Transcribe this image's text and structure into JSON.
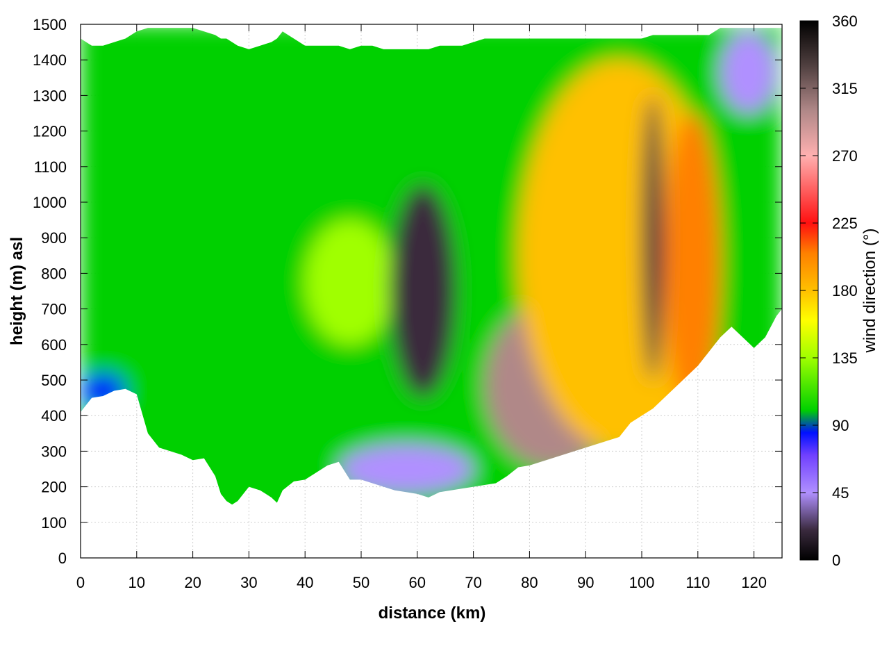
{
  "chart_data": {
    "type": "heatmap",
    "title": "",
    "xlabel": "distance (km)",
    "ylabel": "height (m) asl",
    "xlim": [
      0,
      125
    ],
    "ylim": [
      0,
      1500
    ],
    "xticks": [
      "0",
      "10",
      "20",
      "30",
      "40",
      "50",
      "60",
      "70",
      "80",
      "90",
      "100",
      "110",
      "120"
    ],
    "yticks": [
      "0",
      "100",
      "200",
      "300",
      "400",
      "500",
      "600",
      "700",
      "800",
      "900",
      "1000",
      "1100",
      "1200",
      "1300",
      "1400",
      "1500"
    ],
    "grid": true,
    "colorbar": {
      "label": "wind direction (°)",
      "range": [
        0,
        360
      ],
      "ticks": [
        "0",
        "45",
        "90",
        "135",
        "180",
        "225",
        "270",
        "315",
        "360"
      ],
      "stops": [
        {
          "v": 0,
          "color": "#000000"
        },
        {
          "v": 20,
          "color": "#3a2a3e"
        },
        {
          "v": 45,
          "color": "#b090ff"
        },
        {
          "v": 70,
          "color": "#7040ff"
        },
        {
          "v": 85,
          "color": "#0010ff"
        },
        {
          "v": 100,
          "color": "#00d000"
        },
        {
          "v": 135,
          "color": "#a0ff00"
        },
        {
          "v": 160,
          "color": "#ffff00"
        },
        {
          "v": 180,
          "color": "#ffc000"
        },
        {
          "v": 205,
          "color": "#ff8000"
        },
        {
          "v": 225,
          "color": "#ff1010"
        },
        {
          "v": 270,
          "color": "#ffb0b0"
        },
        {
          "v": 300,
          "color": "#b08888"
        },
        {
          "v": 330,
          "color": "#504040"
        },
        {
          "v": 360,
          "color": "#000000"
        }
      ]
    },
    "terrain_km": [
      0,
      2,
      4,
      6,
      8,
      10,
      12,
      14,
      16,
      18,
      20,
      22,
      24,
      25,
      26,
      27,
      28,
      30,
      32,
      34,
      35,
      36,
      38,
      40,
      42,
      44,
      46,
      48,
      50,
      52,
      54,
      56,
      58,
      60,
      62,
      64,
      66,
      68,
      70,
      72,
      74,
      76,
      78,
      80,
      82,
      84,
      86,
      88,
      90,
      92,
      94,
      96,
      98,
      100,
      102,
      104,
      106,
      108,
      110,
      112,
      114,
      116,
      118,
      120,
      122,
      124,
      125
    ],
    "terrain_m": [
      410,
      450,
      455,
      470,
      475,
      460,
      350,
      310,
      300,
      290,
      275,
      280,
      230,
      180,
      160,
      150,
      160,
      200,
      190,
      170,
      155,
      190,
      215,
      220,
      240,
      260,
      270,
      220,
      220,
      210,
      200,
      190,
      185,
      180,
      170,
      185,
      190,
      195,
      200,
      205,
      210,
      230,
      255,
      260,
      270,
      280,
      290,
      300,
      310,
      320,
      330,
      340,
      380,
      400,
      420,
      450,
      480,
      510,
      540,
      580,
      620,
      650,
      620,
      590,
      620,
      680,
      700
    ],
    "top_m": [
      1460,
      1440,
      1440,
      1450,
      1460,
      1480,
      1490,
      1490,
      1490,
      1490,
      1490,
      1480,
      1470,
      1460,
      1460,
      1450,
      1440,
      1430,
      1440,
      1450,
      1460,
      1480,
      1460,
      1440,
      1440,
      1440,
      1440,
      1430,
      1440,
      1440,
      1430,
      1430,
      1430,
      1430,
      1430,
      1440,
      1440,
      1440,
      1450,
      1460,
      1460,
      1460,
      1460,
      1460,
      1460,
      1460,
      1460,
      1460,
      1460,
      1460,
      1460,
      1460,
      1460,
      1460,
      1470,
      1470,
      1470,
      1470,
      1470,
      1470,
      1490,
      1490,
      1490,
      1490,
      1490,
      1490,
      1490
    ],
    "regions": [
      {
        "feature": "base",
        "value": 125
      },
      {
        "feature": "low-level easterly band",
        "x": [
          0,
          8
        ],
        "y": [
          420,
          520
        ],
        "value": 95
      },
      {
        "feature": "yellow core",
        "x": [
          40,
          56
        ],
        "y": [
          600,
          950
        ],
        "value": 160
      },
      {
        "feature": "western valley flow",
        "x": [
          46,
          70
        ],
        "y": [
          180,
          320
        ],
        "value": 55
      },
      {
        "feature": "north-easterly tongue",
        "x": [
          55,
          67
        ],
        "y": [
          450,
          1050
        ],
        "value": 30
      },
      {
        "feature": "westerly pocket",
        "x": [
          72,
          96
        ],
        "y": [
          250,
          720
        ],
        "value": 320
      },
      {
        "feature": "southerly region",
        "x": [
          78,
          114
        ],
        "y": [
          300,
          1400
        ],
        "value": 190
      },
      {
        "feature": "south-westerly streak",
        "x": [
          104,
          114
        ],
        "y": [
          400,
          1250
        ],
        "value": 215
      },
      {
        "feature": "northerly column",
        "x": [
          100,
          104
        ],
        "y": [
          500,
          1300
        ],
        "value": 355
      },
      {
        "feature": "north-east top",
        "x": [
          114,
          124
        ],
        "y": [
          1250,
          1480
        ],
        "value": 50
      }
    ]
  }
}
